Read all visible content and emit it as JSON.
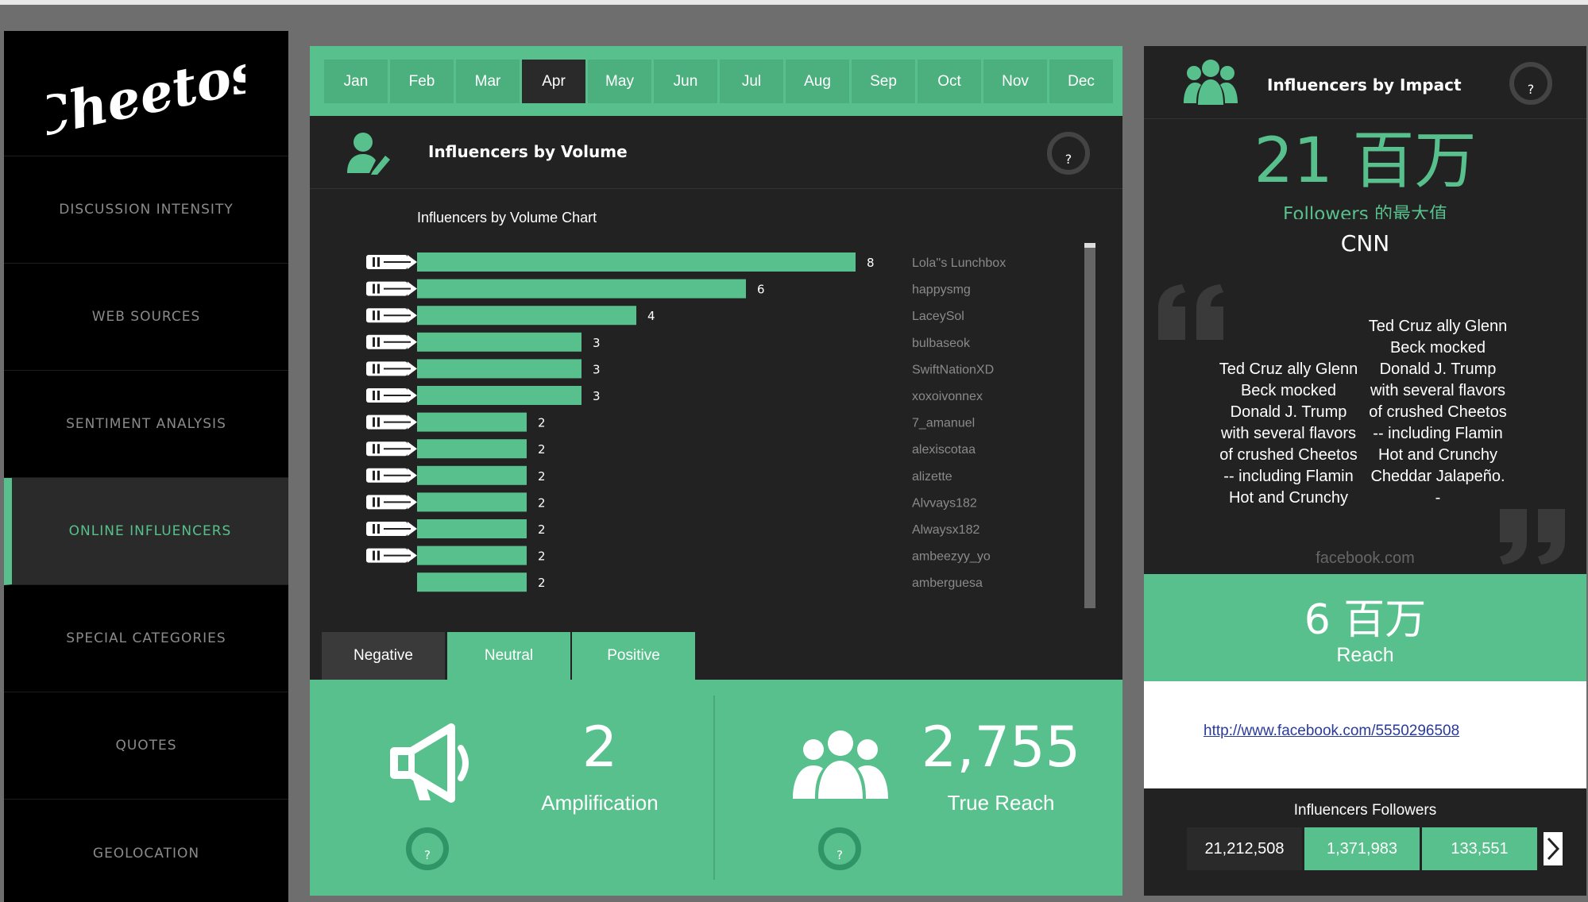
{
  "sidebar": {
    "logo_text": "Cheetos",
    "items": [
      {
        "label": "DISCUSSION INTENSITY"
      },
      {
        "label": "WEB SOURCES"
      },
      {
        "label": "SENTIMENT ANALYSIS"
      },
      {
        "label": "ONLINE INFLUENCERS",
        "active": true
      },
      {
        "label": "SPECIAL CATEGORIES"
      },
      {
        "label": "QUOTES"
      },
      {
        "label": "GEOLOCATION"
      }
    ]
  },
  "months": [
    "Jan",
    "Feb",
    "Mar",
    "Apr",
    "May",
    "Jun",
    "Jul",
    "Aug",
    "Sep",
    "Oct",
    "Nov",
    "Dec"
  ],
  "selected_month": "Apr",
  "volume_panel": {
    "title": "Influencers by Volume",
    "help": "?",
    "chart_title": "Influencers by Volume Chart",
    "icon": "user-pencil-icon"
  },
  "chart_data": {
    "type": "bar",
    "title": "Influencers by Volume Chart",
    "categories": [
      "Lola''s Lunchbox",
      "happysmg",
      "LaceySol",
      "bulbaseok",
      "SwiftNationXD",
      "xoxoivonnex",
      "7_amanuel",
      "alexiscotaa",
      "alizette",
      "Alvvays182",
      "Alwaysx182",
      "ambeezyy_yo",
      "amberguesa"
    ],
    "values": [
      8,
      6,
      4,
      3,
      3,
      3,
      2,
      2,
      2,
      2,
      2,
      2,
      2
    ],
    "orientation": "horizontal",
    "color": "#58c08c",
    "xlim": [
      0,
      8
    ]
  },
  "sentiment_tabs": [
    "Negative",
    "Neutral",
    "Positive"
  ],
  "kpis": {
    "amplification": {
      "value": "2",
      "label": "Amplification",
      "help": "?"
    },
    "true_reach": {
      "value": "2,755",
      "label": "True Reach",
      "help": "?"
    }
  },
  "impact_panel": {
    "title": "Influencers by Impact",
    "help": "?",
    "max_followers": "21 百万",
    "max_followers_label": "Followers 的最大值",
    "source_name": "CNN",
    "quote_1": "Ted Cruz ally Glenn Beck mocked Donald J. Trump with several flavors of crushed Cheetos -- including Flamin Hot and Crunchy",
    "quote_2": "Ted Cruz ally Glenn Beck mocked Donald J. Trump with several flavors of crushed Cheetos -- including Flamin Hot and Crunchy Cheddar Jalapeño. -",
    "quote_source": "facebook.com",
    "reach_value": "6 百万",
    "reach_label": "Reach",
    "link": "http://www.facebook.com/5550296508",
    "followers_title": "Influencers Followers",
    "followers": [
      "21,212,508",
      "1,371,983",
      "133,551"
    ]
  },
  "colors": {
    "accent": "#58c08c",
    "dark_panel": "#222222",
    "sidebar": "#000000"
  }
}
